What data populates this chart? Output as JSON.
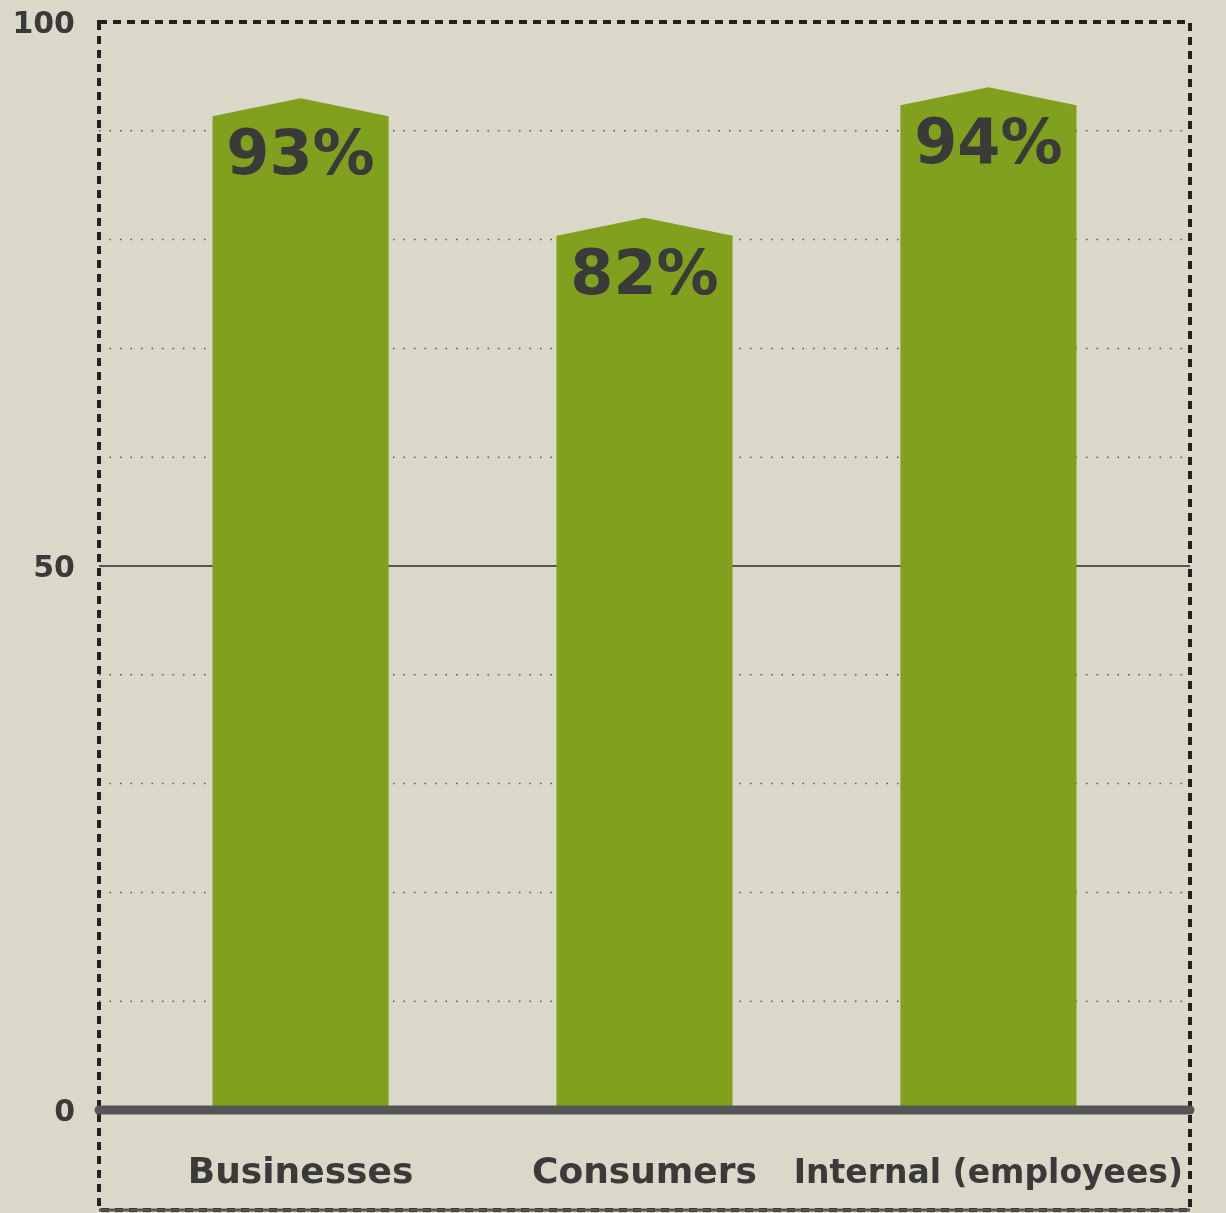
{
  "chart_data": {
    "type": "bar",
    "categories": [
      "Businesses",
      "Consumers",
      "Internal (employees)"
    ],
    "values": [
      93,
      82,
      94
    ],
    "value_labels": [
      "93%",
      "82%",
      "94%"
    ],
    "color": "#80a01e",
    "ylim": [
      0,
      100
    ],
    "yticks": [
      0,
      {
        "value": 10,
        "label": null
      },
      {
        "value": 20,
        "label": null
      },
      {
        "value": 30,
        "label": null
      },
      {
        "value": 40,
        "label": null
      },
      50,
      {
        "value": 60,
        "label": null
      },
      {
        "value": 70,
        "label": null
      },
      {
        "value": 80,
        "label": null
      },
      {
        "value": 90,
        "label": null
      },
      100
    ],
    "grid": true,
    "ref_lines": [
      {
        "axis": "y",
        "value": 50,
        "color": "#555555",
        "line_style": "solid"
      }
    ]
  }
}
